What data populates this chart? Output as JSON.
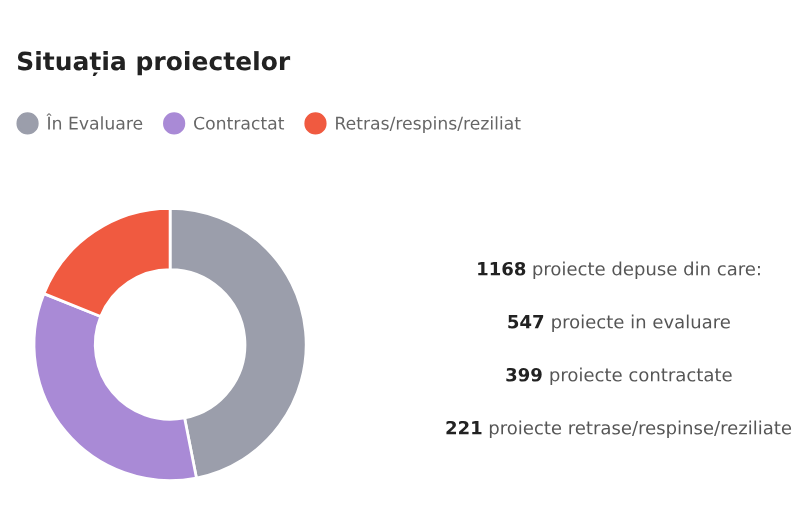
{
  "chart_data": {
    "type": "donut",
    "title": "Situația proiectelor",
    "categories": [
      "În Evaluare",
      "Contractat",
      "Retras/respins/reziliat"
    ],
    "values": [
      46.9,
      34.2,
      18.9
    ],
    "colors": [
      "#9b9eab",
      "#a98ad6",
      "#f05a40"
    ],
    "legend": "top",
    "annotations": [
      "1168 proiecte depuse din care:",
      "547 proiecte in evaluare",
      "399 proiecte contractate",
      "221 proiecte retrase/respinse/reziliate"
    ]
  }
}
